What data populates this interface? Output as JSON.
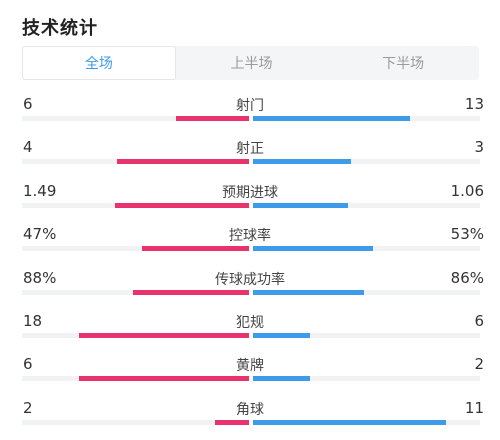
{
  "title": "技术统计",
  "tabs": [
    {
      "label": "全场",
      "active": true
    },
    {
      "label": "上半场",
      "active": false
    },
    {
      "label": "下半场",
      "active": false
    }
  ],
  "colors": {
    "home_bar": "#e8336d",
    "away_bar": "#3d9be9",
    "active_tab": "#3d9be9",
    "track": "#f1f2f4"
  },
  "stats": [
    {
      "label": "射门",
      "home": "6",
      "away": "13",
      "home_fill": 0.32,
      "away_fill": 0.69
    },
    {
      "label": "射正",
      "home": "4",
      "away": "3",
      "home_fill": 0.58,
      "away_fill": 0.43
    },
    {
      "label": "预期进球",
      "home": "1.49",
      "away": "1.06",
      "home_fill": 0.59,
      "away_fill": 0.42
    },
    {
      "label": "控球率",
      "home": "47%",
      "away": "53%",
      "home_fill": 0.47,
      "away_fill": 0.53
    },
    {
      "label": "传球成功率",
      "home": "88%",
      "away": "86%",
      "home_fill": 0.51,
      "away_fill": 0.49
    },
    {
      "label": "犯规",
      "home": "18",
      "away": "6",
      "home_fill": 0.75,
      "away_fill": 0.25
    },
    {
      "label": "黄牌",
      "home": "6",
      "away": "2",
      "home_fill": 0.75,
      "away_fill": 0.25
    },
    {
      "label": "角球",
      "home": "2",
      "away": "11",
      "home_fill": 0.15,
      "away_fill": 0.85
    }
  ]
}
